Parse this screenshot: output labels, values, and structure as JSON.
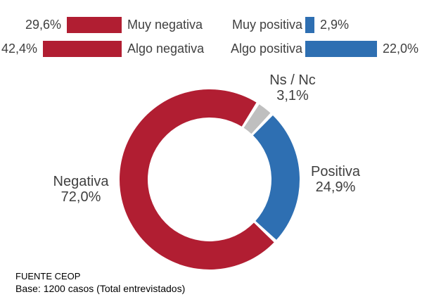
{
  "bar_charts": {
    "negative": {
      "color": "#b11e32",
      "items": [
        {
          "label": "Muy negativa",
          "value": 29.6,
          "value_label": "29,6%"
        },
        {
          "label": "Algo negativa",
          "value": 42.4,
          "value_label": "42,4%"
        }
      ]
    },
    "positive": {
      "color": "#2e6fb2",
      "items": [
        {
          "label": "Muy positiva",
          "value": 2.9,
          "value_label": "2,9%"
        },
        {
          "label": "Algo positiva",
          "value": 22.0,
          "value_label": "22,0%"
        }
      ]
    }
  },
  "donut": {
    "start_angle_deg": 32.4,
    "segments": [
      {
        "label": "Negativa",
        "value": 72.0,
        "value_label": "72,0%",
        "color": "#b11e32"
      },
      {
        "label": "Positiva",
        "value": 24.9,
        "value_label": "24,9%",
        "color": "#2e6fb2"
      },
      {
        "label": "Ns / Nc",
        "value": 3.1,
        "value_label": "3,1%",
        "color": "#bfbfbf"
      }
    ]
  },
  "footer": {
    "source": "FUENTE CEOP",
    "base": "Base: 1200 casos (Total entrevistados)"
  },
  "chart_data": [
    {
      "type": "bar",
      "orientation": "horizontal-right-anchored",
      "categories": [
        "Muy negativa",
        "Algo negativa"
      ],
      "values": [
        29.6,
        42.4
      ],
      "value_labels": [
        "29,6%",
        "42,4%"
      ],
      "color": "#b11e32",
      "title": "",
      "xlabel": "",
      "ylabel": ""
    },
    {
      "type": "bar",
      "orientation": "horizontal-left-anchored",
      "categories": [
        "Muy positiva",
        "Algo positiva"
      ],
      "values": [
        2.9,
        22.0
      ],
      "value_labels": [
        "2,9%",
        "22,0%"
      ],
      "color": "#2e6fb2",
      "title": "",
      "xlabel": "",
      "ylabel": ""
    },
    {
      "type": "pie",
      "donut": true,
      "categories": [
        "Negativa",
        "Positiva",
        "Ns / Nc"
      ],
      "values": [
        72.0,
        24.9,
        3.1
      ],
      "value_labels": [
        "72,0%",
        "24,9%",
        "3,1%"
      ],
      "colors": [
        "#b11e32",
        "#2e6fb2",
        "#bfbfbf"
      ],
      "start_angle_deg": 32.4,
      "clockwise_order": [
        "Ns / Nc",
        "Positiva",
        "Negativa"
      ],
      "title": "",
      "annotation_source": "FUENTE CEOP",
      "annotation_base": "Base: 1200 casos (Total entrevistados)"
    }
  ]
}
